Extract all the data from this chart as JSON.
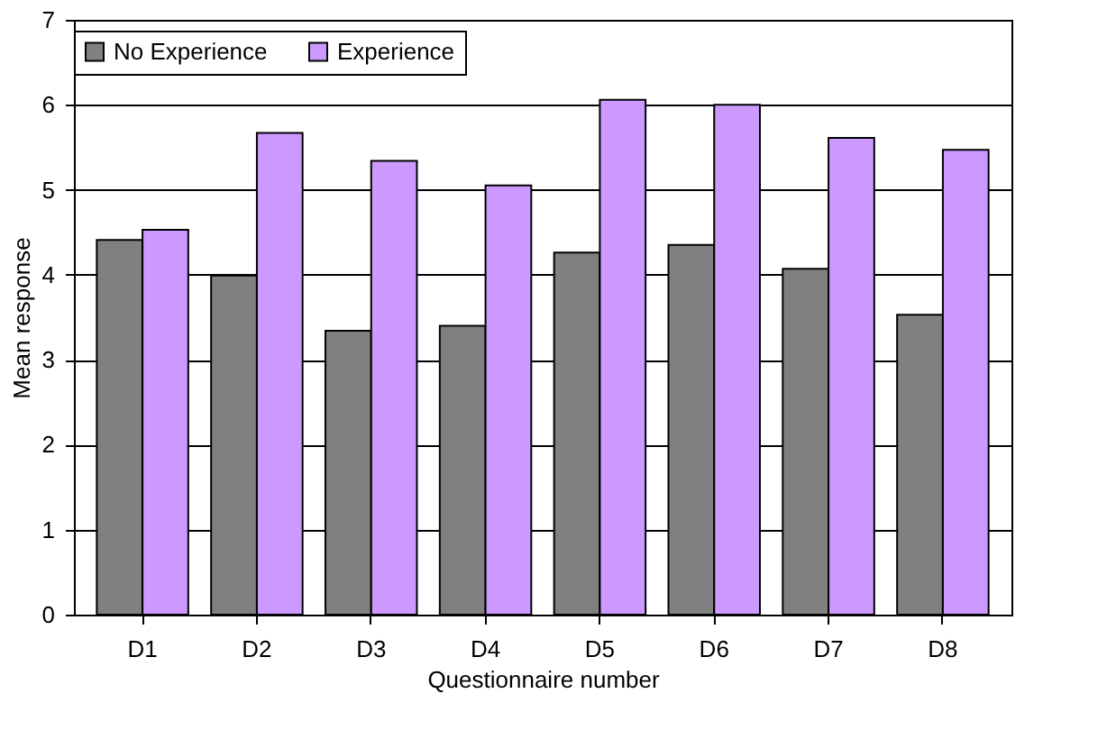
{
  "chart_data": {
    "type": "bar",
    "xlabel": "Questionnaire number",
    "ylabel": "Mean response",
    "categories": [
      "D1",
      "D2",
      "D3",
      "D4",
      "D5",
      "D6",
      "D7",
      "D8"
    ],
    "series": [
      {
        "name": "No Experience",
        "color": "#808080",
        "values": [
          4.41,
          3.99,
          3.34,
          3.4,
          4.26,
          4.35,
          4.07,
          3.53
        ]
      },
      {
        "name": "Experience",
        "color": "#cc99ff",
        "values": [
          4.53,
          5.67,
          5.34,
          5.05,
          6.06,
          6.0,
          5.61,
          5.47
        ]
      }
    ],
    "ylim": [
      0,
      7
    ],
    "yticks": [
      0,
      1,
      2,
      3,
      4,
      5,
      6,
      7
    ],
    "grid": "y",
    "legend": "top"
  }
}
